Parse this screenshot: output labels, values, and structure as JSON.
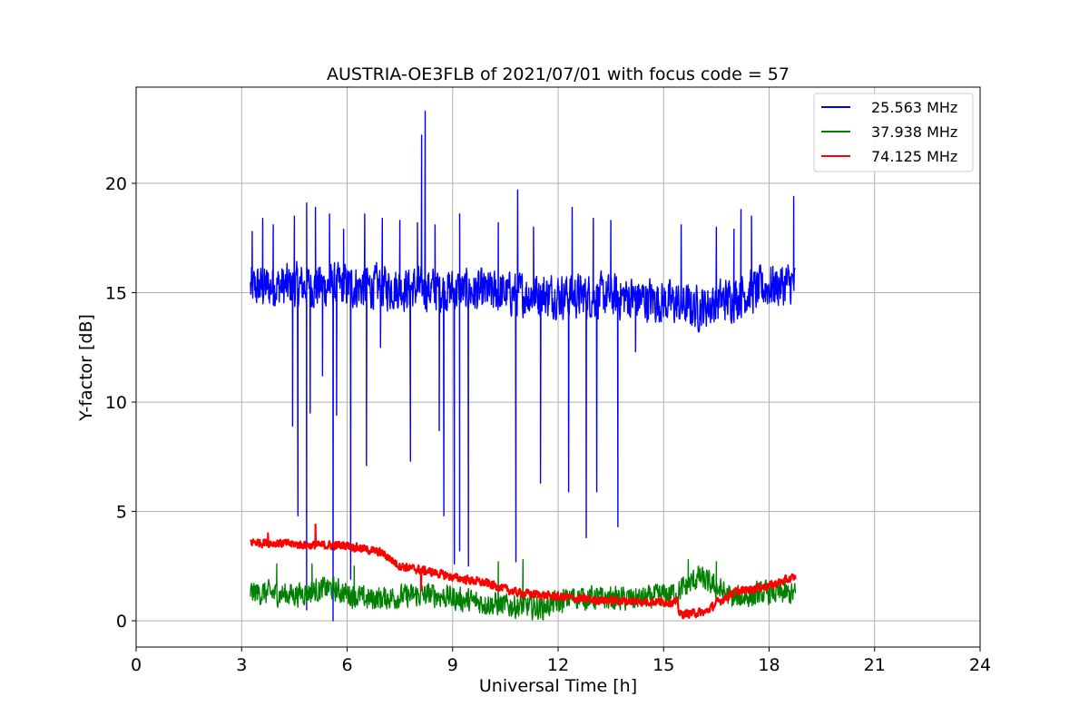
{
  "chart_data": {
    "type": "line",
    "title": "AUSTRIA-OE3FLB of 2021/07/01 with focus code = 57",
    "xlabel": "Universal Time [h]",
    "ylabel": "Y-factor [dB]",
    "xlim": [
      0,
      24
    ],
    "ylim": [
      -1.2,
      24.4
    ],
    "xticks": [
      0,
      3,
      6,
      9,
      12,
      15,
      18,
      21,
      24
    ],
    "yticks": [
      0,
      5,
      10,
      15,
      20
    ],
    "grid": true,
    "legend_position": "top-right",
    "series": [
      {
        "name": "25.563 MHz",
        "color": "#0000ff",
        "baseline": [
          [
            3.25,
            15.2
          ],
          [
            4.0,
            15.3
          ],
          [
            6.0,
            15.3
          ],
          [
            8.0,
            15.2
          ],
          [
            10.0,
            15.0
          ],
          [
            12.0,
            14.9
          ],
          [
            14.0,
            14.8
          ],
          [
            15.0,
            14.6
          ],
          [
            16.0,
            14.3
          ],
          [
            17.0,
            14.8
          ],
          [
            18.0,
            15.3
          ],
          [
            18.75,
            15.4
          ]
        ],
        "noise": 1.3,
        "spikes_up": [
          [
            3.3,
            17.8
          ],
          [
            3.6,
            18.4
          ],
          [
            3.9,
            18.1
          ],
          [
            4.5,
            18.5
          ],
          [
            4.85,
            19.1
          ],
          [
            5.1,
            18.9
          ],
          [
            5.5,
            18.6
          ],
          [
            5.9,
            17.9
          ],
          [
            6.5,
            18.6
          ],
          [
            7.0,
            18.4
          ],
          [
            7.5,
            18.3
          ],
          [
            8.0,
            18.2
          ],
          [
            8.12,
            22.2
          ],
          [
            8.22,
            23.3
          ],
          [
            8.5,
            18.1
          ],
          [
            9.2,
            18.6
          ],
          [
            10.3,
            18.2
          ],
          [
            10.85,
            19.7
          ],
          [
            11.3,
            18.0
          ],
          [
            12.4,
            18.9
          ],
          [
            13.0,
            18.4
          ],
          [
            13.5,
            18.3
          ],
          [
            15.5,
            18.1
          ],
          [
            16.5,
            18.0
          ],
          [
            17.0,
            17.9
          ],
          [
            17.2,
            18.8
          ],
          [
            17.5,
            18.5
          ],
          [
            18.7,
            19.4
          ]
        ],
        "spikes_down": [
          [
            4.45,
            8.9
          ],
          [
            4.6,
            4.8
          ],
          [
            4.85,
            0.5
          ],
          [
            4.95,
            9.5
          ],
          [
            5.3,
            11.2
          ],
          [
            5.6,
            0.0
          ],
          [
            5.7,
            9.4
          ],
          [
            6.1,
            1.9
          ],
          [
            6.55,
            7.1
          ],
          [
            6.95,
            12.5
          ],
          [
            7.8,
            7.3
          ],
          [
            8.62,
            8.7
          ],
          [
            8.75,
            4.8
          ],
          [
            9.05,
            2.6
          ],
          [
            9.2,
            3.2
          ],
          [
            9.45,
            2.5
          ],
          [
            10.8,
            2.7
          ],
          [
            11.5,
            6.3
          ],
          [
            12.3,
            5.9
          ],
          [
            12.8,
            3.8
          ],
          [
            13.1,
            5.9
          ],
          [
            13.7,
            4.3
          ],
          [
            14.2,
            12.3
          ]
        ]
      },
      {
        "name": "37.938 MHz",
        "color": "#008000",
        "baseline": [
          [
            3.25,
            1.3
          ],
          [
            4.5,
            1.2
          ],
          [
            5.5,
            1.5
          ],
          [
            6.5,
            1.0
          ],
          [
            7.5,
            1.1
          ],
          [
            8.5,
            1.2
          ],
          [
            9.5,
            0.9
          ],
          [
            10.5,
            0.7
          ],
          [
            11.5,
            0.6
          ],
          [
            12.5,
            1.1
          ],
          [
            13.5,
            1.0
          ],
          [
            14.5,
            1.0
          ],
          [
            15.4,
            1.3
          ],
          [
            16.0,
            2.0
          ],
          [
            17.0,
            1.0
          ],
          [
            18.0,
            1.3
          ],
          [
            18.75,
            1.2
          ]
        ],
        "noise": 0.7,
        "spikes_up": [
          [
            4.0,
            2.6
          ],
          [
            5.0,
            2.6
          ],
          [
            6.2,
            2.5
          ],
          [
            10.3,
            2.7
          ],
          [
            11.0,
            2.8
          ],
          [
            15.7,
            2.8
          ],
          [
            16.5,
            2.7
          ]
        ],
        "spikes_down": []
      },
      {
        "name": "74.125 MHz",
        "color": "#ff0000",
        "baseline": [
          [
            3.25,
            3.6
          ],
          [
            4.0,
            3.55
          ],
          [
            5.0,
            3.45
          ],
          [
            6.0,
            3.45
          ],
          [
            7.0,
            3.1
          ],
          [
            7.5,
            2.5
          ],
          [
            8.5,
            2.2
          ],
          [
            9.0,
            2.0
          ],
          [
            10.0,
            1.7
          ],
          [
            10.8,
            1.3
          ],
          [
            12.0,
            1.1
          ],
          [
            13.0,
            0.95
          ],
          [
            14.0,
            0.9
          ],
          [
            15.4,
            0.85
          ],
          [
            15.45,
            0.3
          ],
          [
            16.2,
            0.4
          ],
          [
            16.5,
            0.8
          ],
          [
            17.0,
            1.3
          ],
          [
            18.0,
            1.6
          ],
          [
            18.75,
            2.0
          ]
        ],
        "noise": 0.25,
        "spikes_up": [
          [
            5.1,
            4.4
          ],
          [
            3.75,
            4.0
          ]
        ],
        "spikes_down": [
          [
            8.1,
            1.4
          ]
        ]
      }
    ]
  }
}
